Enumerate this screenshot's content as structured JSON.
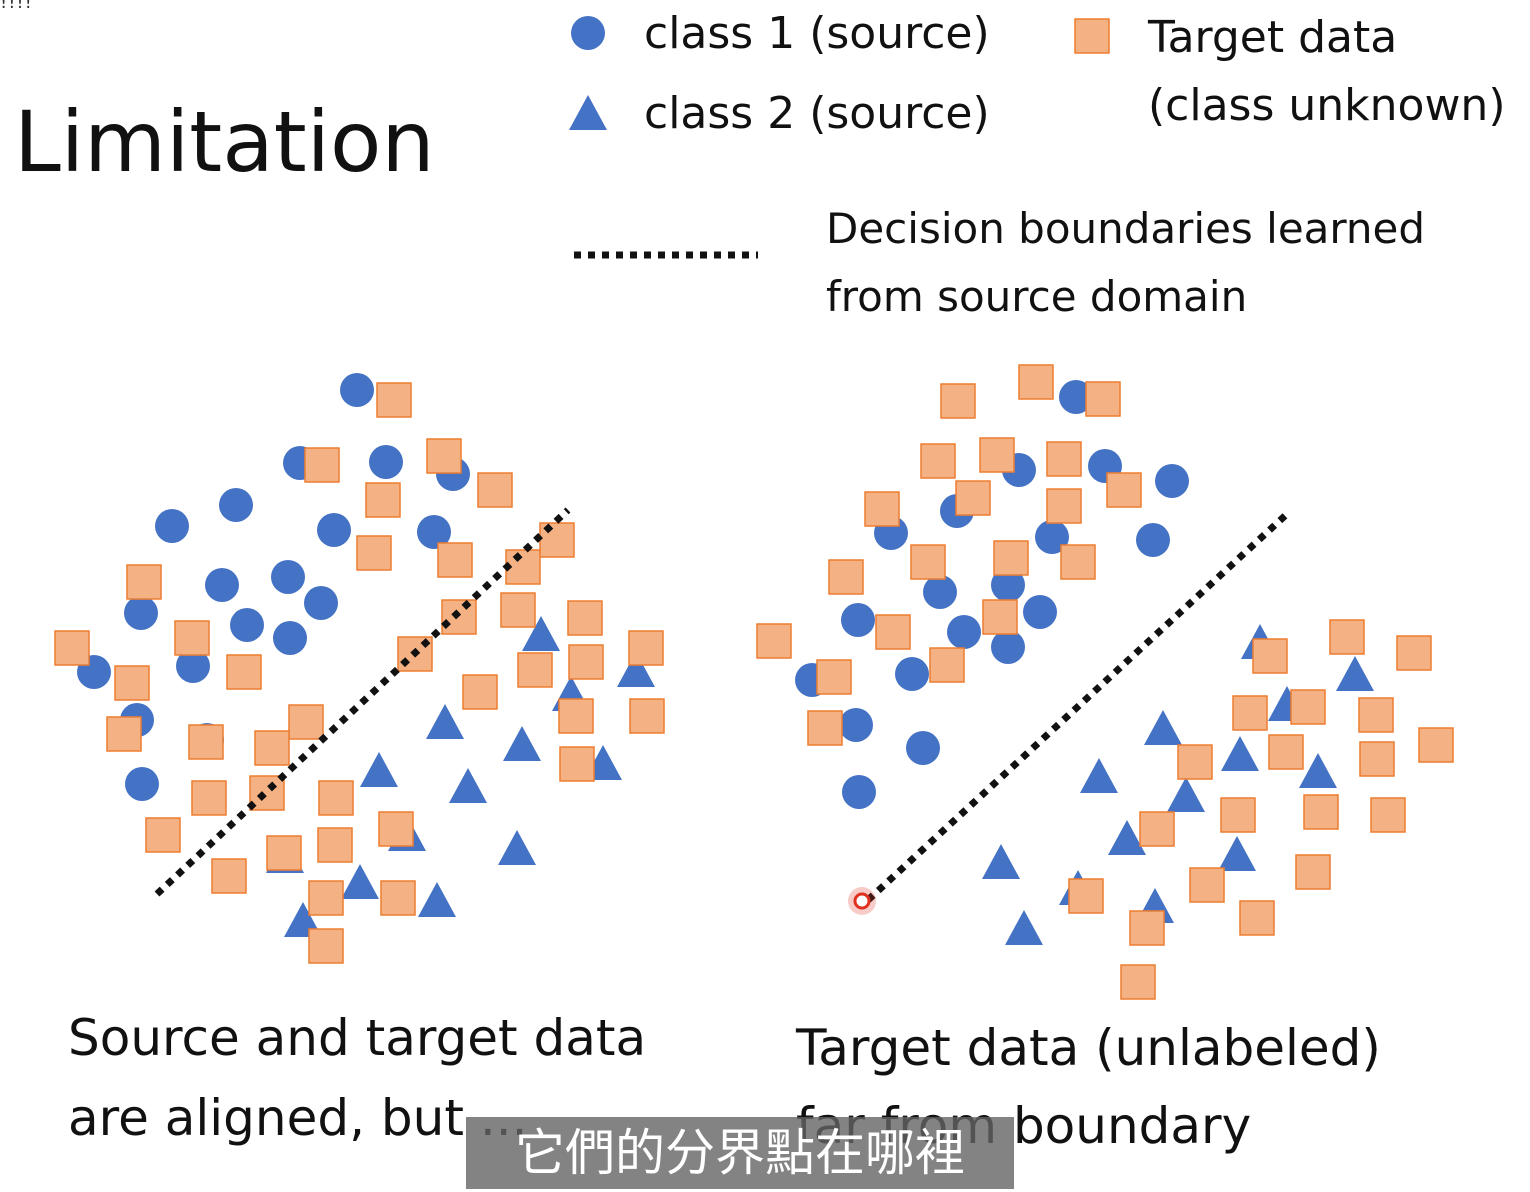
{
  "corner_mark": "!!!!",
  "title": "Limitation",
  "legend": {
    "class1": "class 1 (source)",
    "class2": "class 2 (source)",
    "target_line1": "Target data",
    "target_line2": "(class unknown)",
    "boundary_line1": "Decision boundaries learned",
    "boundary_line2": "from source domain"
  },
  "captions": {
    "left_line1": "Source and target data",
    "left_line2": "are aligned, but ...",
    "right_line1": "Target data (unlabeled)",
    "right_line2": "far from boundary"
  },
  "subtitle": "它們的分界點在哪裡",
  "colors": {
    "class1": "#4472C4",
    "class2": "#4472C4",
    "target_fill": "#F4B183",
    "target_stroke": "#ED7D31",
    "boundary": "#111111",
    "pointer": "#E03020"
  },
  "legend_symbols": [
    "circle",
    "triangle",
    "square",
    "dotted-line"
  ]
}
